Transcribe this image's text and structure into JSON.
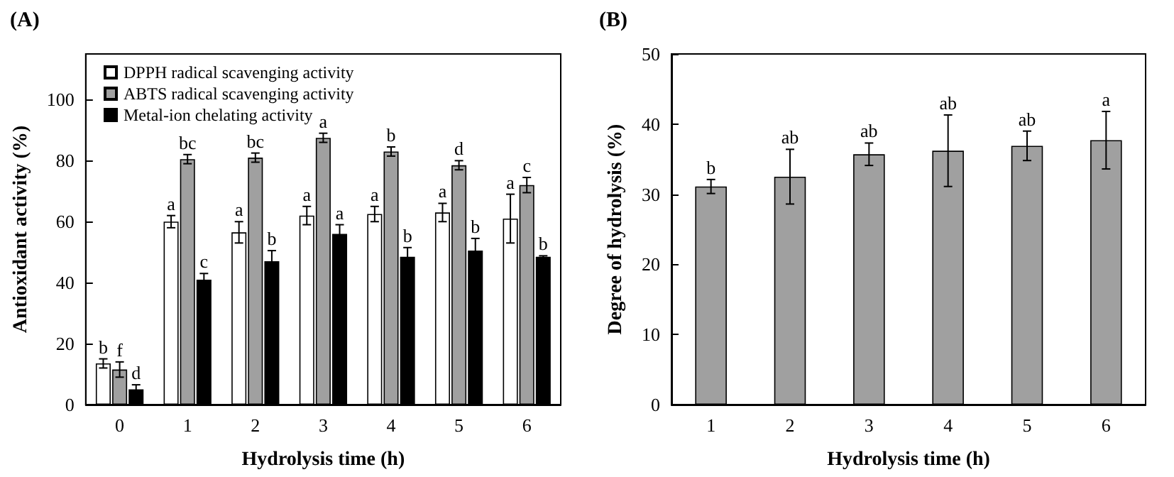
{
  "chart_data": [
    {
      "type": "bar",
      "title": "(A)",
      "xlabel": "Hydrolysis time (h)",
      "ylabel": "Antioxidant activity (%)",
      "categories": [
        "0",
        "1",
        "2",
        "3",
        "4",
        "5",
        "6"
      ],
      "series": [
        {
          "name": "DPPH radical scavenging activity",
          "color": "#ffffff",
          "values": [
            13.5,
            60,
            56.5,
            62,
            62.5,
            63,
            61
          ],
          "errors": [
            1.5,
            2,
            3.5,
            3,
            2.5,
            3,
            8
          ],
          "value_labels": [
            "b",
            "a",
            "a",
            "a",
            "a",
            "a",
            "a"
          ]
        },
        {
          "name": "ABTS radical scavenging activity",
          "color": "#a0a0a0",
          "values": [
            11.5,
            80.5,
            81,
            87.5,
            83,
            78.5,
            72
          ],
          "errors": [
            2.5,
            1.5,
            1.5,
            1.5,
            1.5,
            1.5,
            2.5
          ],
          "value_labels": [
            "f",
            "bc",
            "bc",
            "a",
            "b",
            "d",
            "c"
          ]
        },
        {
          "name": "Metal-ion chelating activity",
          "color": "#000000",
          "values": [
            5,
            41,
            47,
            56,
            48.5,
            50.5,
            48.5
          ],
          "errors": [
            1.5,
            2,
            3.5,
            3,
            3,
            4,
            0.3
          ],
          "value_labels": [
            "d",
            "c",
            "b",
            "a",
            "b",
            "b",
            "b"
          ]
        }
      ],
      "ylim": [
        0,
        115
      ],
      "yticks": [
        0,
        20,
        40,
        60,
        80,
        100
      ],
      "grid": false,
      "legend": "top left"
    },
    {
      "type": "bar",
      "title": "(B)",
      "xlabel": "Hydrolysis time (h)",
      "ylabel": "Degree of hydrolysis (%)",
      "categories": [
        "1",
        "2",
        "3",
        "4",
        "5",
        "6"
      ],
      "series": [
        {
          "color": "#a0a0a0",
          "values": [
            31.1,
            32.5,
            35.7,
            36.2,
            36.9,
            37.7
          ],
          "errors": [
            1,
            3.9,
            1.6,
            5.1,
            2.1,
            4.1
          ],
          "value_labels": [
            "b",
            "ab",
            "ab",
            "ab",
            "ab",
            "a"
          ]
        }
      ],
      "ylim": [
        0,
        50
      ],
      "yticks": [
        0,
        10,
        20,
        30,
        40,
        50
      ],
      "grid": false,
      "legend": false
    }
  ]
}
